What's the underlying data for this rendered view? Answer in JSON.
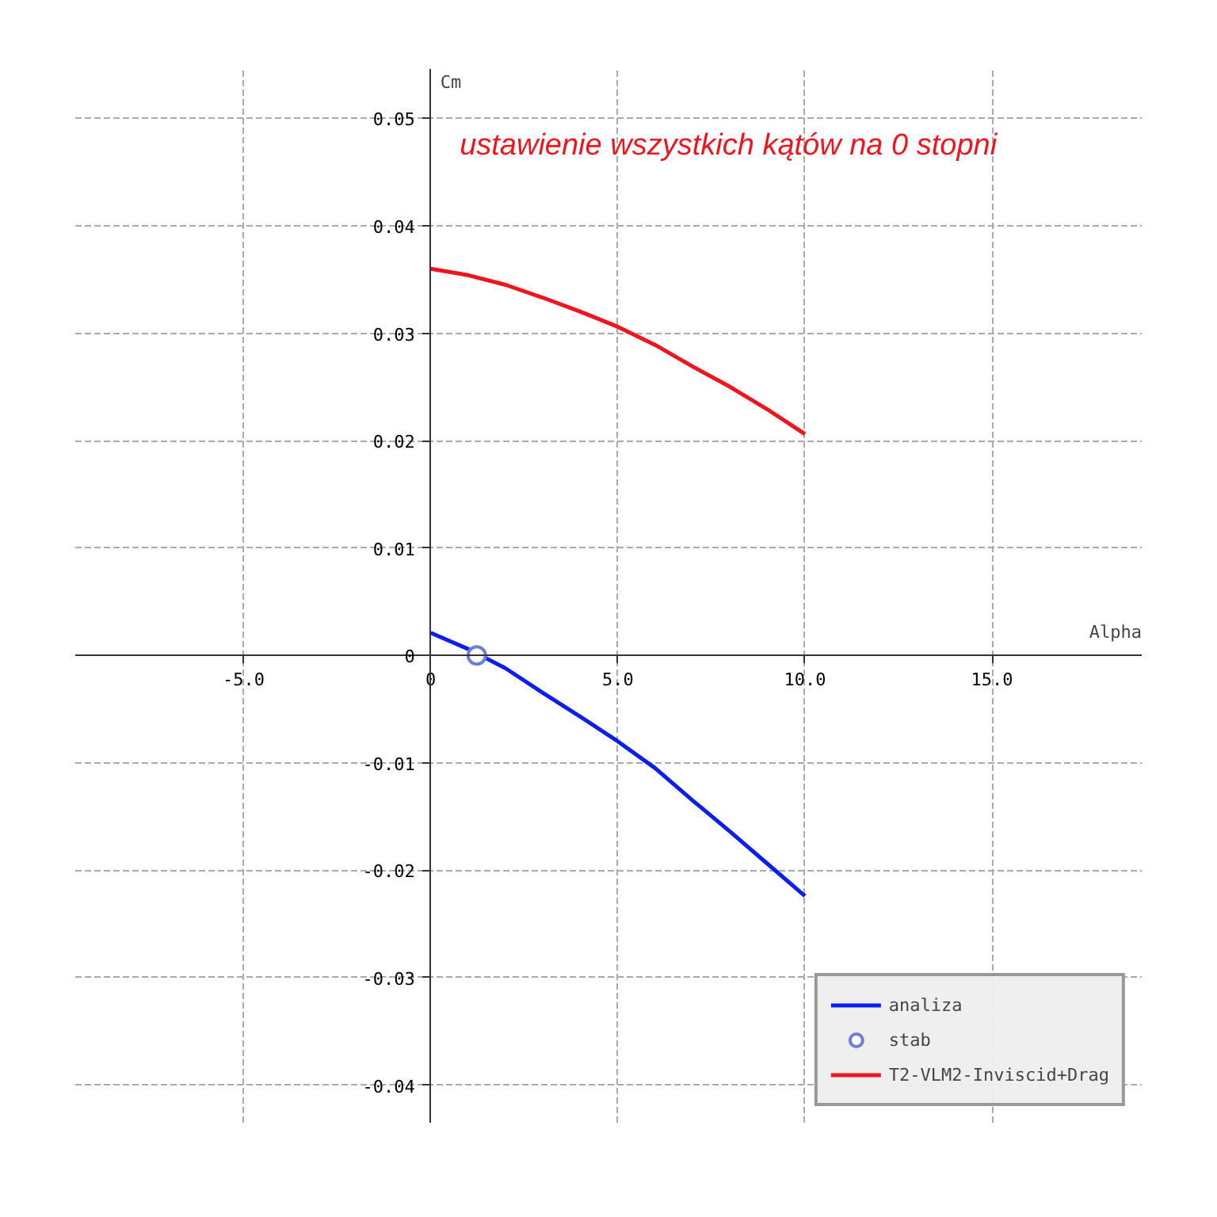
{
  "chart_data": {
    "type": "line",
    "xlabel": "Alpha",
    "ylabel": "Cm",
    "x": [
      0,
      1,
      2,
      3,
      4,
      5,
      6,
      7,
      8,
      9,
      10
    ],
    "series": [
      {
        "name": "analiza",
        "color": "#0a1ef0",
        "values": [
          0.0021,
          0.0006,
          -0.0012,
          -0.0035,
          -0.0057,
          -0.008,
          -0.0105,
          -0.0135,
          -0.0164,
          -0.0194,
          -0.0224
        ]
      },
      {
        "name": "stab",
        "type": "scatter",
        "marker": "circle",
        "color": "#6f7fd8",
        "x": [
          1.23
        ],
        "values": [
          0
        ]
      },
      {
        "name": "T2-VLM2-Inviscid+Drag",
        "color": "#f0141e",
        "values": [
          0.036,
          0.0354,
          0.0345,
          0.0333,
          0.032,
          0.0306,
          0.0289,
          0.0269,
          0.025,
          0.0229,
          0.0206
        ]
      }
    ],
    "annotations": [
      "ustawienie wszystkich kątów na 0 stopni"
    ],
    "xlim": [
      -9.5,
      19.0
    ],
    "ylim": [
      -0.0435,
      0.0546
    ],
    "xticks": [
      {
        "value": -5,
        "label": "-5.0"
      },
      0,
      {
        "value": 5,
        "label": "5.0"
      },
      {
        "value": 10,
        "label": "10.0"
      },
      {
        "value": 15,
        "label": "15.0"
      }
    ],
    "yticks": [
      -0.04,
      -0.03,
      -0.02,
      -0.01,
      0,
      0.01,
      0.02,
      0.03,
      0.04,
      0.05
    ],
    "grid": true,
    "legend": "bottom right",
    "line_style": "solid"
  }
}
